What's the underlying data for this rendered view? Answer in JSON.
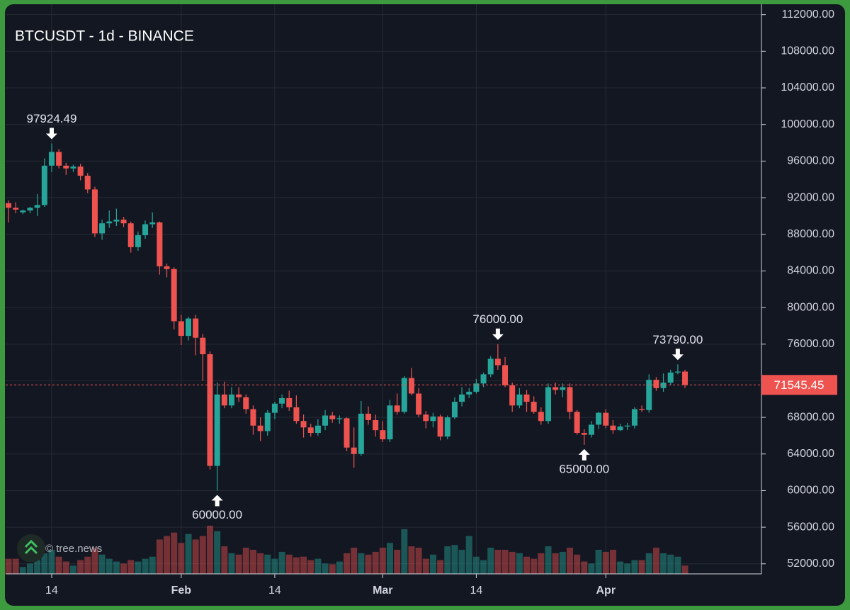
{
  "chart_data": {
    "type": "candlestick",
    "title": "BTCUSDT - 1d - BINANCE",
    "watermark": "© tree.news",
    "up_color": "#26a69a",
    "down_color": "#ef5350",
    "grid": true,
    "categories": [
      null,
      null,
      null,
      null,
      null,
      null,
      "14",
      null,
      null,
      null,
      null,
      null,
      null,
      null,
      null,
      null,
      null,
      null,
      null,
      null,
      null,
      null,
      null,
      null,
      "Feb",
      null,
      null,
      null,
      null,
      null,
      null,
      null,
      null,
      null,
      null,
      null,
      null,
      "14",
      null,
      null,
      null,
      null,
      null,
      null,
      null,
      null,
      null,
      null,
      null,
      null,
      null,
      null,
      "Mar",
      null,
      null,
      null,
      null,
      null,
      null,
      null,
      null,
      null,
      null,
      null,
      null,
      "14",
      null,
      null,
      null,
      null,
      null,
      null,
      null,
      null,
      null,
      null,
      null,
      null,
      null,
      null,
      null,
      null,
      null,
      "Apr",
      null,
      null,
      null,
      null,
      null,
      null,
      null,
      null,
      null,
      null,
      null
    ],
    "open": [
      91400,
      90900,
      90400,
      90600,
      90900,
      91200,
      95500,
      97000,
      95500,
      95200,
      95400,
      94400,
      92900,
      88100,
      89200,
      89400,
      89600,
      89200,
      86600,
      87900,
      89100,
      89300,
      84500,
      84200,
      78500,
      76900,
      78800,
      76700,
      74900,
      62700,
      70500,
      69300,
      70500,
      70200,
      68900,
      67100,
      66500,
      68500,
      69500,
      70100,
      69100,
      67600,
      66900,
      66300,
      67100,
      68200,
      67800,
      67900,
      64700,
      64000,
      68400,
      67700,
      66600,
      65600,
      69300,
      68600,
      72300,
      70600,
      68300,
      67600,
      68100,
      65900,
      68000,
      69700,
      70500,
      70800,
      71700,
      72700,
      74400,
      73700,
      71500,
      69300,
      70500,
      69700,
      68600,
      67600,
      71300,
      71000,
      71300,
      68600,
      66300,
      66100,
      67200,
      68500,
      67100,
      66600,
      67000,
      67100,
      68900,
      68800,
      72100,
      71200,
      71800,
      72900,
      73000
    ],
    "high": [
      91700,
      91500,
      90700,
      91000,
      92400,
      96300,
      97924.49,
      97300,
      95800,
      95600,
      95700,
      94700,
      93200,
      89600,
      90600,
      90800,
      89900,
      89400,
      88300,
      89500,
      90400,
      89400,
      84800,
      84400,
      79200,
      79000,
      79200,
      77100,
      75200,
      71800,
      71900,
      71300,
      71300,
      70500,
      69300,
      68000,
      68800,
      69700,
      70500,
      70900,
      70400,
      68300,
      67300,
      67800,
      68800,
      68600,
      68200,
      68000,
      66900,
      69800,
      69200,
      68300,
      67600,
      69900,
      70600,
      72500,
      73400,
      71200,
      68700,
      68500,
      68300,
      68200,
      70200,
      71300,
      71200,
      72200,
      72900,
      74700,
      76000,
      74600,
      71800,
      71200,
      71000,
      70300,
      69100,
      71700,
      71800,
      71700,
      71700,
      68800,
      66700,
      67600,
      68600,
      68900,
      67700,
      67300,
      67400,
      69100,
      69300,
      72700,
      72400,
      72800,
      73200,
      73790,
      73200
    ],
    "low": [
      89300,
      90300,
      90200,
      90300,
      90000,
      91000,
      94800,
      95200,
      94500,
      94800,
      93900,
      92500,
      87700,
      87400,
      88700,
      88900,
      88800,
      86000,
      86200,
      87500,
      88700,
      83600,
      83300,
      77600,
      75900,
      76400,
      74800,
      72000,
      62300,
      60000,
      69000,
      69000,
      69700,
      68400,
      66100,
      65400,
      66000,
      67800,
      69000,
      68700,
      67300,
      65800,
      65900,
      66000,
      66600,
      67400,
      67300,
      64300,
      62500,
      63800,
      67200,
      65900,
      65300,
      65300,
      68300,
      68400,
      70400,
      68000,
      66800,
      66900,
      65500,
      65600,
      67800,
      69200,
      70100,
      70600,
      71300,
      72400,
      73200,
      71300,
      68600,
      69000,
      68600,
      68400,
      67200,
      67300,
      70500,
      70200,
      67800,
      66100,
      65000,
      65800,
      66700,
      66800,
      66200,
      66500,
      66600,
      66800,
      68600,
      68500,
      70900,
      70800,
      71500,
      72700,
      71200
    ],
    "close": [
      90900,
      90700,
      90600,
      90900,
      91200,
      95500,
      97000,
      95500,
      95200,
      95400,
      94400,
      92900,
      88100,
      89200,
      89400,
      89600,
      89200,
      86600,
      87900,
      89100,
      89300,
      84500,
      84200,
      78500,
      76900,
      78800,
      76700,
      74900,
      62700,
      70500,
      69300,
      70500,
      70200,
      68900,
      67100,
      66500,
      68500,
      69500,
      70100,
      69100,
      67600,
      66900,
      66300,
      67100,
      68200,
      67800,
      67900,
      64700,
      64000,
      68400,
      67700,
      66600,
      65600,
      69300,
      68600,
      72300,
      70600,
      68300,
      67600,
      68100,
      65900,
      68000,
      69700,
      70500,
      70800,
      71700,
      72700,
      74400,
      73700,
      71500,
      69300,
      70500,
      69700,
      68600,
      67600,
      71300,
      71000,
      71300,
      68600,
      66300,
      66100,
      67200,
      68500,
      67100,
      66600,
      67000,
      67100,
      68900,
      68800,
      72100,
      71200,
      71800,
      72900,
      73000,
      71545.45
    ],
    "volume": [
      22,
      22,
      10,
      15,
      20,
      30,
      35,
      25,
      18,
      12,
      20,
      25,
      38,
      28,
      22,
      18,
      15,
      20,
      18,
      22,
      25,
      50,
      55,
      60,
      45,
      58,
      50,
      55,
      70,
      62,
      40,
      30,
      28,
      38,
      35,
      30,
      28,
      22,
      32,
      28,
      24,
      25,
      20,
      22,
      15,
      14,
      18,
      30,
      38,
      30,
      28,
      32,
      38,
      45,
      35,
      65,
      40,
      38,
      22,
      28,
      20,
      40,
      42,
      35,
      55,
      25,
      20,
      38,
      35,
      35,
      32,
      30,
      25,
      22,
      30,
      40,
      30,
      32,
      38,
      28,
      18,
      15,
      35,
      32,
      35,
      18,
      15,
      20,
      20,
      30,
      38,
      30,
      28,
      25,
      12
    ],
    "ylim": [
      50900,
      113600
    ],
    "yticks": [
      {
        "value": 52000,
        "label": "52000.00"
      },
      {
        "value": 56000,
        "label": "56000.00"
      },
      {
        "value": 60000,
        "label": "60000.00"
      },
      {
        "value": 64000,
        "label": "64000.00"
      },
      {
        "value": 68000,
        "label": "68000.00"
      },
      {
        "value": 72000,
        "label": "72000.00"
      },
      {
        "value": 76000,
        "label": "76000.00"
      },
      {
        "value": 80000,
        "label": "80000.00"
      },
      {
        "value": 84000,
        "label": "84000.00"
      },
      {
        "value": 88000,
        "label": "88000.00"
      },
      {
        "value": 92000,
        "label": "92000.00"
      },
      {
        "value": 96000,
        "label": "96000.00"
      },
      {
        "value": 100000,
        "label": "100000.00"
      },
      {
        "value": 104000,
        "label": "104000.00"
      },
      {
        "value": 108000,
        "label": "108000.00"
      },
      {
        "value": 112000,
        "label": "112000.00"
      }
    ],
    "annotations": [
      {
        "kind": "high",
        "value": 97924.49,
        "label": "97924.49"
      },
      {
        "kind": "low",
        "value": 60000,
        "label": "60000.00"
      },
      {
        "kind": "high",
        "value": 76000,
        "label": "76000.00"
      },
      {
        "kind": "low",
        "value": 65000,
        "label": "65000.00"
      },
      {
        "kind": "high",
        "value": 73790,
        "label": "73790.00"
      }
    ],
    "last_price": {
      "value": 71545.45,
      "label": "71545.45"
    }
  }
}
